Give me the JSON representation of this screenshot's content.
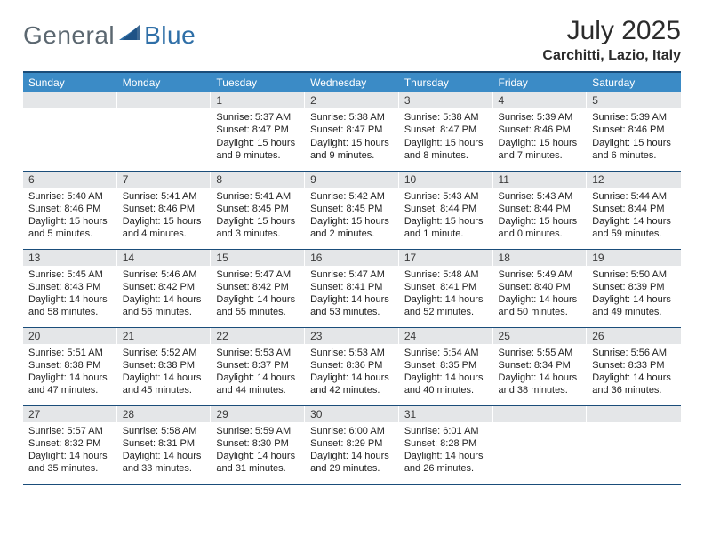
{
  "brand": {
    "part1": "General",
    "part2": "Blue"
  },
  "title": {
    "month": "July 2025",
    "location": "Carchitti, Lazio, Italy"
  },
  "colors": {
    "header_bg": "#3b8bc6",
    "header_text": "#ffffff",
    "border": "#1a4d7a",
    "daynum_bg": "#e4e6e8",
    "text": "#222222",
    "logo_gray": "#5b6770",
    "logo_blue": "#2f6fa7"
  },
  "weekdays": [
    "Sunday",
    "Monday",
    "Tuesday",
    "Wednesday",
    "Thursday",
    "Friday",
    "Saturday"
  ],
  "weeks": [
    [
      {
        "blank": true
      },
      {
        "blank": true
      },
      {
        "n": "1",
        "sunrise": "5:37 AM",
        "sunset": "8:47 PM",
        "daylight": "15 hours and 9 minutes."
      },
      {
        "n": "2",
        "sunrise": "5:38 AM",
        "sunset": "8:47 PM",
        "daylight": "15 hours and 9 minutes."
      },
      {
        "n": "3",
        "sunrise": "5:38 AM",
        "sunset": "8:47 PM",
        "daylight": "15 hours and 8 minutes."
      },
      {
        "n": "4",
        "sunrise": "5:39 AM",
        "sunset": "8:46 PM",
        "daylight": "15 hours and 7 minutes."
      },
      {
        "n": "5",
        "sunrise": "5:39 AM",
        "sunset": "8:46 PM",
        "daylight": "15 hours and 6 minutes."
      }
    ],
    [
      {
        "n": "6",
        "sunrise": "5:40 AM",
        "sunset": "8:46 PM",
        "daylight": "15 hours and 5 minutes."
      },
      {
        "n": "7",
        "sunrise": "5:41 AM",
        "sunset": "8:46 PM",
        "daylight": "15 hours and 4 minutes."
      },
      {
        "n": "8",
        "sunrise": "5:41 AM",
        "sunset": "8:45 PM",
        "daylight": "15 hours and 3 minutes."
      },
      {
        "n": "9",
        "sunrise": "5:42 AM",
        "sunset": "8:45 PM",
        "daylight": "15 hours and 2 minutes."
      },
      {
        "n": "10",
        "sunrise": "5:43 AM",
        "sunset": "8:44 PM",
        "daylight": "15 hours and 1 minute."
      },
      {
        "n": "11",
        "sunrise": "5:43 AM",
        "sunset": "8:44 PM",
        "daylight": "15 hours and 0 minutes."
      },
      {
        "n": "12",
        "sunrise": "5:44 AM",
        "sunset": "8:44 PM",
        "daylight": "14 hours and 59 minutes."
      }
    ],
    [
      {
        "n": "13",
        "sunrise": "5:45 AM",
        "sunset": "8:43 PM",
        "daylight": "14 hours and 58 minutes."
      },
      {
        "n": "14",
        "sunrise": "5:46 AM",
        "sunset": "8:42 PM",
        "daylight": "14 hours and 56 minutes."
      },
      {
        "n": "15",
        "sunrise": "5:47 AM",
        "sunset": "8:42 PM",
        "daylight": "14 hours and 55 minutes."
      },
      {
        "n": "16",
        "sunrise": "5:47 AM",
        "sunset": "8:41 PM",
        "daylight": "14 hours and 53 minutes."
      },
      {
        "n": "17",
        "sunrise": "5:48 AM",
        "sunset": "8:41 PM",
        "daylight": "14 hours and 52 minutes."
      },
      {
        "n": "18",
        "sunrise": "5:49 AM",
        "sunset": "8:40 PM",
        "daylight": "14 hours and 50 minutes."
      },
      {
        "n": "19",
        "sunrise": "5:50 AM",
        "sunset": "8:39 PM",
        "daylight": "14 hours and 49 minutes."
      }
    ],
    [
      {
        "n": "20",
        "sunrise": "5:51 AM",
        "sunset": "8:38 PM",
        "daylight": "14 hours and 47 minutes."
      },
      {
        "n": "21",
        "sunrise": "5:52 AM",
        "sunset": "8:38 PM",
        "daylight": "14 hours and 45 minutes."
      },
      {
        "n": "22",
        "sunrise": "5:53 AM",
        "sunset": "8:37 PM",
        "daylight": "14 hours and 44 minutes."
      },
      {
        "n": "23",
        "sunrise": "5:53 AM",
        "sunset": "8:36 PM",
        "daylight": "14 hours and 42 minutes."
      },
      {
        "n": "24",
        "sunrise": "5:54 AM",
        "sunset": "8:35 PM",
        "daylight": "14 hours and 40 minutes."
      },
      {
        "n": "25",
        "sunrise": "5:55 AM",
        "sunset": "8:34 PM",
        "daylight": "14 hours and 38 minutes."
      },
      {
        "n": "26",
        "sunrise": "5:56 AM",
        "sunset": "8:33 PM",
        "daylight": "14 hours and 36 minutes."
      }
    ],
    [
      {
        "n": "27",
        "sunrise": "5:57 AM",
        "sunset": "8:32 PM",
        "daylight": "14 hours and 35 minutes."
      },
      {
        "n": "28",
        "sunrise": "5:58 AM",
        "sunset": "8:31 PM",
        "daylight": "14 hours and 33 minutes."
      },
      {
        "n": "29",
        "sunrise": "5:59 AM",
        "sunset": "8:30 PM",
        "daylight": "14 hours and 31 minutes."
      },
      {
        "n": "30",
        "sunrise": "6:00 AM",
        "sunset": "8:29 PM",
        "daylight": "14 hours and 29 minutes."
      },
      {
        "n": "31",
        "sunrise": "6:01 AM",
        "sunset": "8:28 PM",
        "daylight": "14 hours and 26 minutes."
      },
      {
        "blank": true
      },
      {
        "blank": true
      }
    ]
  ],
  "labels": {
    "sunrise": "Sunrise: ",
    "sunset": "Sunset: ",
    "daylight": "Daylight: "
  }
}
